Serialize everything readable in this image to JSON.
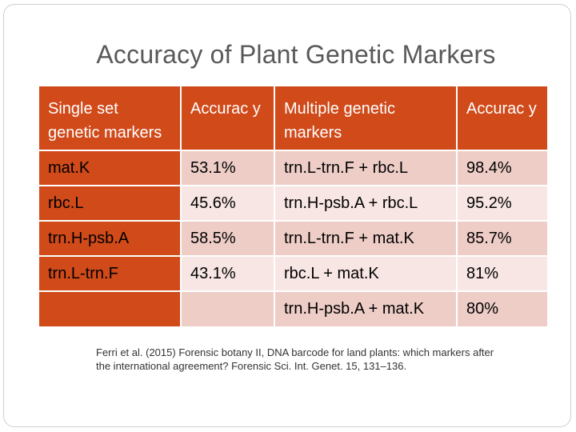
{
  "title": "Accuracy of Plant Genetic Markers",
  "table": {
    "headers": [
      "Single set genetic markers",
      "Accurac y",
      "Multiple genetic markers",
      "Accurac y"
    ],
    "rows": [
      {
        "single": "mat.K",
        "acc1": "53.1%",
        "multiple": "trn.L-trn.F + rbc.L",
        "acc2": "98.4%"
      },
      {
        "single": "rbc.L",
        "acc1": "45.6%",
        "multiple": "trn.H-psb.A + rbc.L",
        "acc2": "95.2%"
      },
      {
        "single": "trn.H-psb.A",
        "acc1": "58.5%",
        "multiple": "trn.L-trn.F + mat.K",
        "acc2": "85.7%"
      },
      {
        "single": "trn.L-trn.F",
        "acc1": "43.1%",
        "multiple": "rbc.L + mat.K",
        "acc2": "81%"
      },
      {
        "single": "",
        "acc1": "",
        "multiple": "trn.H-psb.A + mat.K",
        "acc2": "80%"
      }
    ]
  },
  "citation": "Ferri et al. (2015) Forensic botany II, DNA barcode for land plants: which markers after the international agreement? Forensic Sci. Int. Genet. 15, 131–136.",
  "colors": {
    "header": "#d04a1a",
    "row_dark": "#eecdc7",
    "row_light": "#f7e6e3",
    "title": "#595959"
  }
}
